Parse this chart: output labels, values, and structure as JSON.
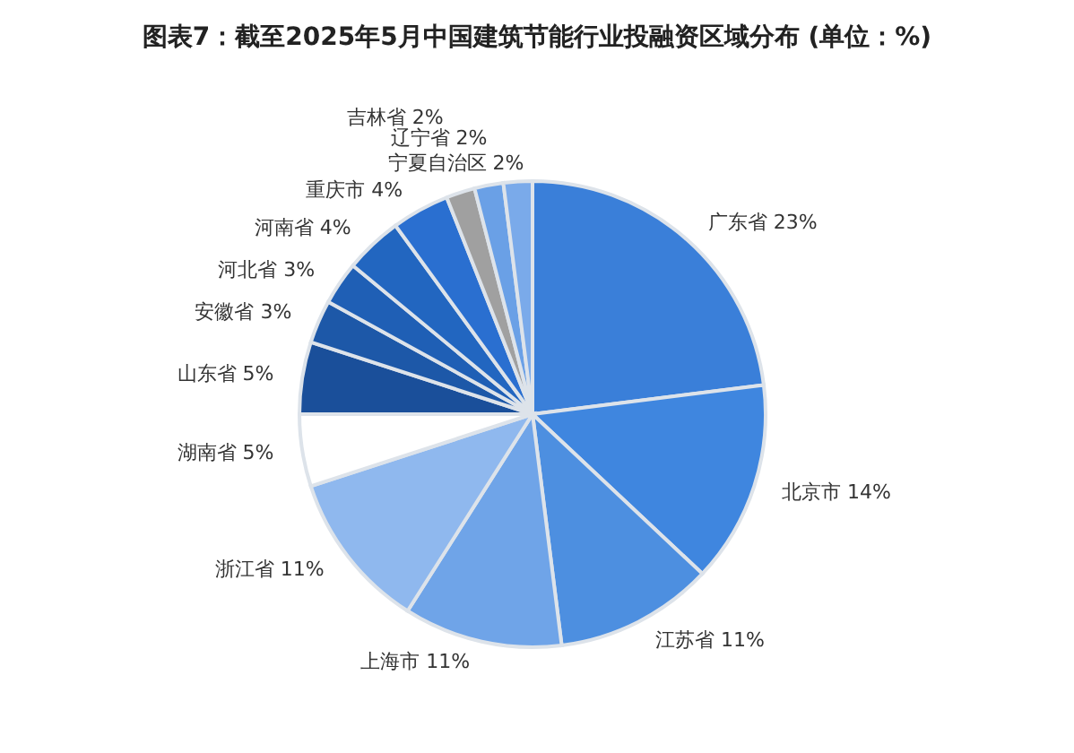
{
  "chart_data": {
    "type": "pie",
    "title": "图表7：截至2025年5月中国建筑节能行业投融资区域分布 (单位：%)",
    "categories": [
      "广东省",
      "北京市",
      "江苏省",
      "上海市",
      "浙江省",
      "湖南省",
      "山东省",
      "安徽省",
      "河北省",
      "河南省",
      "重庆市",
      "吉林省",
      "辽宁省",
      "宁夏自治区"
    ],
    "values": [
      23,
      14,
      11,
      11,
      11,
      5,
      5,
      3,
      3,
      4,
      4,
      2,
      2,
      2
    ],
    "value_labels": [
      "23%",
      "14%",
      "11%",
      "11%",
      "11%",
      "5%",
      "5%",
      "3%",
      "3%",
      "4%",
      "4%",
      "2%",
      "2%",
      "2%"
    ],
    "colors": [
      "#3a7fd9",
      "#3f86df",
      "#4d8fe0",
      "#6fa4e8",
      "#8fb8ee",
      "#ffffff",
      "#1a4f9a",
      "#1d58a8",
      "#1f5fb5",
      "#2266c0",
      "#2a6fd0",
      "#a0a0a0",
      "#6aa0e6",
      "#7aaaea"
    ],
    "legend": false
  }
}
